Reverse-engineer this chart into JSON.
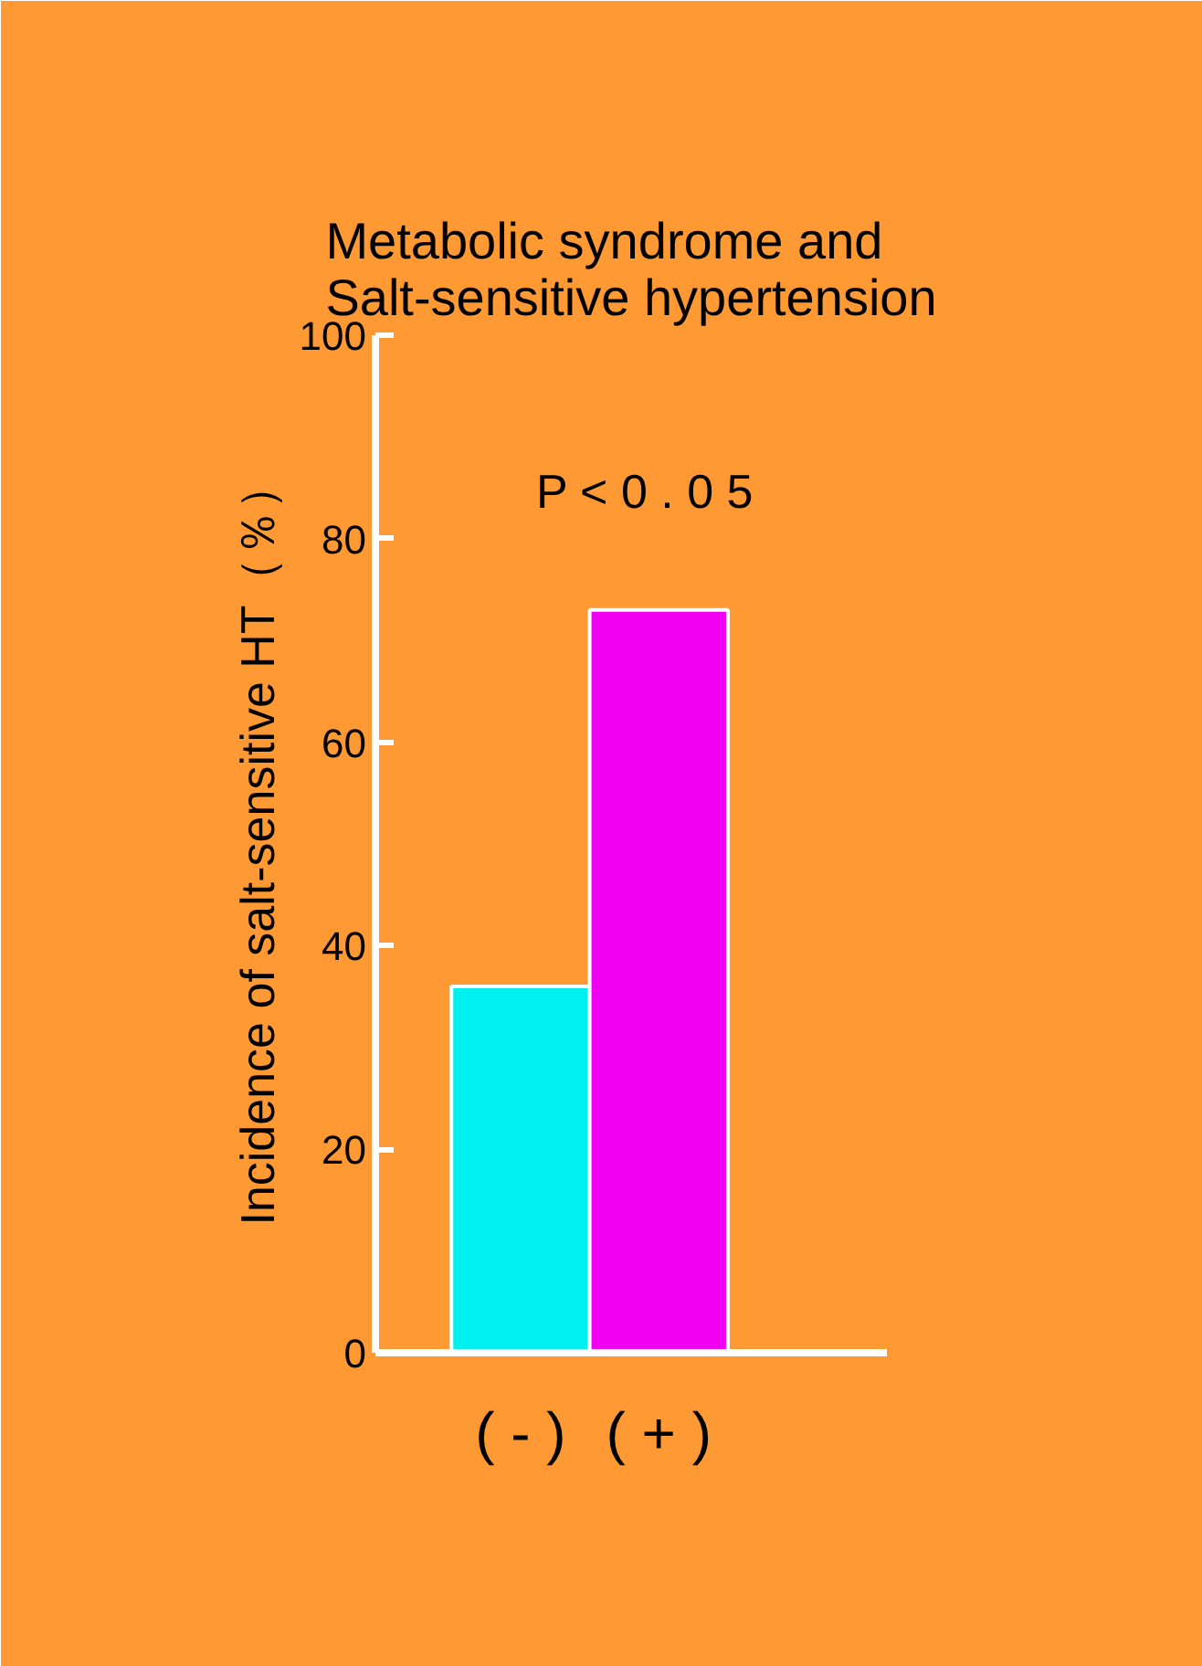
{
  "chart_data": {
    "type": "bar",
    "title": "Metabolic syndrome and\nSalt-sensitive hypertension",
    "ylabel": "Incidence of salt-sensitive HT（％）",
    "categories": [
      "( - )",
      "( + )"
    ],
    "values": [
      36,
      73
    ],
    "colors": [
      "#00f0f0",
      "#f000f0"
    ],
    "ylim": [
      0,
      100
    ],
    "yticks": [
      0,
      20,
      40,
      60,
      80,
      100
    ],
    "annotations": [
      "P < 0 . 0 5"
    ],
    "grid": false
  }
}
